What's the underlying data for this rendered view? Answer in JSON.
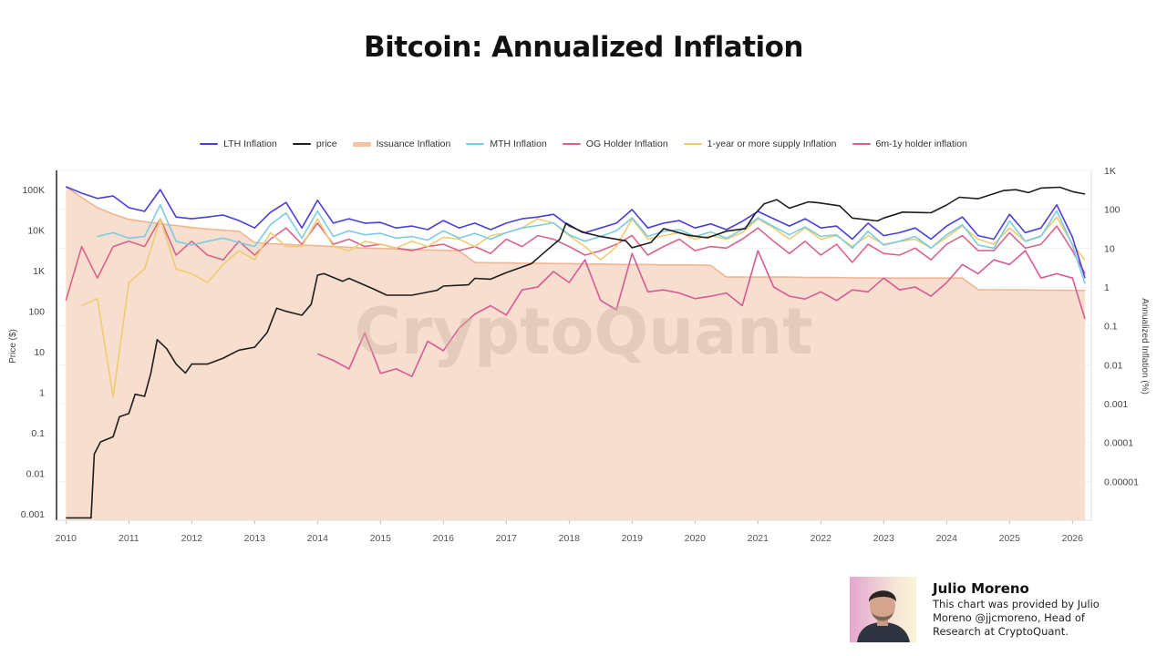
{
  "title": "Bitcoin: Annualized Inflation",
  "legend": [
    {
      "label": "LTH Inflation",
      "color": "#4b3fd6"
    },
    {
      "label": "price",
      "color": "#1e1e1e"
    },
    {
      "label": "Issuance Inflation",
      "color": "#f3c3a2"
    },
    {
      "label": "MTH Inflation",
      "color": "#7ccbe2"
    },
    {
      "label": "OG Holder Inflation",
      "color": "#d9648a"
    },
    {
      "label": "1-year or more supply Inflation",
      "color": "#efcb72"
    },
    {
      "label": "6m-1y holder inflation",
      "color": "#d65b96"
    }
  ],
  "watermark": "CryptoQuant",
  "author": {
    "name": "Julio Moreno",
    "description": "This chart was provided by Julio Moreno @jjcmoreno, Head of Research at CryptoQuant."
  },
  "chart_data": {
    "type": "line",
    "title": "Bitcoin: Annualized Inflation",
    "xlim": [
      2009.85,
      2026.3
    ],
    "x_ticks": [
      "2010",
      "2011",
      "2012",
      "2013",
      "2014",
      "2015",
      "2016",
      "2017",
      "2018",
      "2019",
      "2020",
      "2021",
      "2022",
      "2023",
      "2024",
      "2025",
      "2026"
    ],
    "left_axis": {
      "label": "Price ($)",
      "scale": "log",
      "ylim": [
        0.0007,
        300000
      ],
      "ticks": [
        {
          "v": 100000,
          "t": "100K"
        },
        {
          "v": 10000,
          "t": "10K"
        },
        {
          "v": 1000,
          "t": "1K"
        },
        {
          "v": 100,
          "t": "100"
        },
        {
          "v": 10,
          "t": "10"
        },
        {
          "v": 1,
          "t": "1"
        },
        {
          "v": 0.1,
          "t": "0.1"
        },
        {
          "v": 0.01,
          "t": "0.01"
        },
        {
          "v": 0.001,
          "t": "0.001"
        }
      ]
    },
    "right_axis": {
      "label": "Annualized Inflation (%)",
      "scale": "log",
      "ylim": [
        1e-06,
        1000
      ],
      "ticks": [
        {
          "v": 1000,
          "t": "1K"
        },
        {
          "v": 100,
          "t": "100"
        },
        {
          "v": 10,
          "t": "10"
        },
        {
          "v": 1,
          "t": "1"
        },
        {
          "v": 0.1,
          "t": "0.1"
        },
        {
          "v": 0.01,
          "t": "0.01"
        },
        {
          "v": 0.001,
          "t": "0.001"
        },
        {
          "v": 0.0001,
          "t": "0.0001"
        },
        {
          "v": 1e-05,
          "t": "0.00001"
        }
      ]
    },
    "grid": true,
    "legend_position": "top",
    "x": [
      2010,
      2010.25,
      2010.5,
      2010.75,
      2011,
      2011.25,
      2011.5,
      2011.75,
      2012,
      2012.25,
      2012.5,
      2012.75,
      2013,
      2013.25,
      2013.5,
      2013.75,
      2014,
      2014.25,
      2014.5,
      2014.75,
      2015,
      2015.25,
      2015.5,
      2015.75,
      2016,
      2016.25,
      2016.5,
      2016.75,
      2017,
      2017.25,
      2017.5,
      2017.75,
      2018,
      2018.25,
      2018.5,
      2018.75,
      2019,
      2019.25,
      2019.5,
      2019.75,
      2020,
      2020.25,
      2020.5,
      2020.75,
      2021,
      2021.25,
      2021.5,
      2021.75,
      2022,
      2022.25,
      2022.5,
      2022.75,
      2023,
      2023.25,
      2023.5,
      2023.75,
      2024,
      2024.25,
      2024.5,
      2024.75,
      2025,
      2025.25,
      2025.5,
      2025.75,
      2026,
      2026.2
    ],
    "series": [
      {
        "name": "Issuance Inflation",
        "axis": "right",
        "kind": "area",
        "color": "#f0b592",
        "values": [
          380,
          200,
          110,
          75,
          55,
          48,
          42,
          38,
          34,
          31,
          29,
          27,
          14,
          13,
          12.5,
          12,
          11.5,
          11,
          10.5,
          10,
          9.8,
          9.5,
          9.2,
          9,
          8.8,
          8.5,
          4.3,
          4.2,
          4.2,
          4.1,
          4.1,
          4.0,
          4.0,
          3.9,
          3.9,
          3.8,
          3.8,
          3.8,
          3.7,
          3.7,
          3.7,
          3.6,
          1.8,
          1.8,
          1.8,
          1.8,
          1.8,
          1.75,
          1.75,
          1.75,
          1.72,
          1.72,
          1.7,
          1.7,
          1.7,
          1.7,
          1.7,
          1.7,
          0.85,
          0.85,
          0.84,
          0.84,
          0.83,
          0.83,
          0.82,
          0.82
        ]
      },
      {
        "name": "6m-1y holder inflation",
        "axis": "right",
        "color": "#d65b96",
        "values": [
          null,
          null,
          null,
          null,
          null,
          null,
          null,
          null,
          null,
          null,
          null,
          null,
          null,
          null,
          null,
          null,
          0.019,
          0.013,
          0.0078,
          0.066,
          0.006,
          0.0078,
          0.005,
          0.04,
          0.023,
          0.087,
          0.2,
          0.33,
          0.19,
          0.84,
          1.0,
          2.5,
          1.3,
          5,
          0.45,
          0.26,
          7.3,
          0.75,
          0.84,
          0.7,
          0.5,
          0.58,
          0.7,
          0.33,
          8.6,
          1.0,
          0.58,
          0.49,
          0.75,
          0.45,
          0.84,
          0.75,
          1.7,
          0.84,
          1.0,
          0.58,
          1.3,
          3.8,
          2.2,
          5,
          3.8,
          8.6,
          1.7,
          2.2,
          1.7,
          0.15
        ]
      },
      {
        "name": "OG Holder Inflation",
        "axis": "right",
        "color": "#d9648a",
        "values": [
          0.45,
          11,
          1.7,
          11,
          15,
          11,
          57,
          6.6,
          15,
          6.6,
          5,
          15,
          6.6,
          17,
          33,
          12.6,
          44,
          12.6,
          17,
          11,
          12.6,
          10,
          8.6,
          11,
          12.6,
          8.6,
          11,
          7.3,
          17,
          11,
          21,
          17,
          11,
          6.6,
          8.6,
          12.6,
          21,
          6.6,
          11,
          17,
          8.6,
          11,
          10,
          17,
          33,
          15,
          7.3,
          15,
          6.6,
          12.6,
          4.3,
          12.6,
          7.3,
          6.6,
          10,
          5,
          12.6,
          21,
          8.6,
          8.6,
          25,
          10,
          12.6,
          37,
          8.6,
          2.2
        ]
      },
      {
        "name": "1-year or more supply Inflation",
        "axis": "right",
        "color": "#efcb72",
        "values": [
          null,
          0.33,
          0.5,
          0.0015,
          1.3,
          2.9,
          57,
          2.9,
          2.2,
          1.3,
          3.8,
          8.6,
          5,
          25,
          11,
          11,
          57,
          11,
          8.6,
          15,
          12.6,
          10,
          15,
          11,
          19,
          17,
          11,
          21,
          25,
          33,
          57,
          44,
          21,
          11,
          5,
          11,
          57,
          17,
          21,
          25,
          17,
          21,
          17,
          25,
          57,
          33,
          17,
          33,
          17,
          21,
          11,
          21,
          12.6,
          15,
          17,
          10,
          19,
          37,
          17,
          12.6,
          33,
          15,
          21,
          63,
          12.6,
          5
        ]
      },
      {
        "name": "MTH Inflation",
        "axis": "right",
        "color": "#7ccbe2",
        "values": [
          null,
          null,
          20,
          25,
          18,
          20,
          130,
          15,
          12,
          15,
          18,
          14,
          11,
          40,
          80,
          18,
          90,
          20,
          28,
          22,
          24,
          18,
          20,
          16,
          28,
          18,
          24,
          17,
          25,
          33,
          38,
          45,
          22,
          15,
          20,
          28,
          60,
          20,
          27,
          30,
          20,
          26,
          18,
          30,
          60,
          36,
          22,
          35,
          20,
          22,
          10,
          27,
          12,
          15,
          20,
          10,
          22,
          40,
          12,
          10,
          50,
          15,
          20,
          90,
          12,
          1.2
        ]
      },
      {
        "name": "LTH Inflation",
        "axis": "right",
        "color": "#4b3fd6",
        "values": [
          380,
          260,
          190,
          220,
          110,
          88,
          320,
          63,
          57,
          63,
          71,
          51,
          33,
          83,
          150,
          33,
          170,
          44,
          57,
          44,
          46,
          33,
          37,
          30,
          51,
          33,
          44,
          30,
          44,
          57,
          63,
          74,
          37,
          25,
          33,
          44,
          98,
          33,
          44,
          51,
          33,
          42,
          30,
          49,
          88,
          57,
          37,
          57,
          33,
          37,
          17,
          44,
          21,
          25,
          33,
          17,
          37,
          63,
          21,
          17,
          74,
          25,
          33,
          130,
          19,
          1.7
        ]
      },
      {
        "name": "price",
        "axis": "left",
        "color": "#1e1e1e",
        "points": [
          [
            2010.0,
            0.0008
          ],
          [
            2010.4,
            0.0008
          ],
          [
            2010.45,
            0.03
          ],
          [
            2010.55,
            0.06
          ],
          [
            2010.75,
            0.08
          ],
          [
            2010.85,
            0.25
          ],
          [
            2011.0,
            0.3
          ],
          [
            2011.1,
            0.9
          ],
          [
            2011.25,
            0.8
          ],
          [
            2011.35,
            3
          ],
          [
            2011.45,
            20
          ],
          [
            2011.6,
            12
          ],
          [
            2011.75,
            5
          ],
          [
            2011.9,
            3
          ],
          [
            2012.0,
            5
          ],
          [
            2012.25,
            5
          ],
          [
            2012.5,
            7
          ],
          [
            2012.75,
            11
          ],
          [
            2013.0,
            13
          ],
          [
            2013.2,
            30
          ],
          [
            2013.35,
            120
          ],
          [
            2013.5,
            100
          ],
          [
            2013.75,
            80
          ],
          [
            2013.9,
            150
          ],
          [
            2014.0,
            780
          ],
          [
            2014.1,
            850
          ],
          [
            2014.4,
            550
          ],
          [
            2014.5,
            650
          ],
          [
            2014.9,
            350
          ],
          [
            2015.1,
            250
          ],
          [
            2015.5,
            250
          ],
          [
            2015.9,
            330
          ],
          [
            2016.0,
            420
          ],
          [
            2016.4,
            450
          ],
          [
            2016.5,
            650
          ],
          [
            2016.75,
            620
          ],
          [
            2017.0,
            900
          ],
          [
            2017.4,
            1500
          ],
          [
            2017.6,
            2800
          ],
          [
            2017.85,
            6000
          ],
          [
            2017.95,
            15000
          ],
          [
            2018.2,
            9000
          ],
          [
            2018.5,
            7000
          ],
          [
            2018.9,
            5500
          ],
          [
            2019.0,
            3700
          ],
          [
            2019.3,
            5000
          ],
          [
            2019.5,
            11000
          ],
          [
            2019.9,
            7500
          ],
          [
            2020.2,
            6500
          ],
          [
            2020.5,
            9500
          ],
          [
            2020.8,
            11000
          ],
          [
            2020.95,
            25000
          ],
          [
            2021.1,
            45000
          ],
          [
            2021.3,
            57000
          ],
          [
            2021.5,
            35000
          ],
          [
            2021.8,
            50000
          ],
          [
            2021.95,
            48000
          ],
          [
            2022.3,
            40000
          ],
          [
            2022.5,
            20000
          ],
          [
            2022.9,
            17000
          ],
          [
            2023.0,
            20000
          ],
          [
            2023.3,
            28000
          ],
          [
            2023.75,
            27000
          ],
          [
            2024.0,
            42000
          ],
          [
            2024.2,
            65000
          ],
          [
            2024.5,
            60000
          ],
          [
            2024.9,
            95000
          ],
          [
            2025.1,
            100000
          ],
          [
            2025.3,
            85000
          ],
          [
            2025.5,
            110000
          ],
          [
            2025.8,
            115000
          ],
          [
            2026.0,
            90000
          ],
          [
            2026.2,
            78000
          ]
        ]
      }
    ]
  }
}
